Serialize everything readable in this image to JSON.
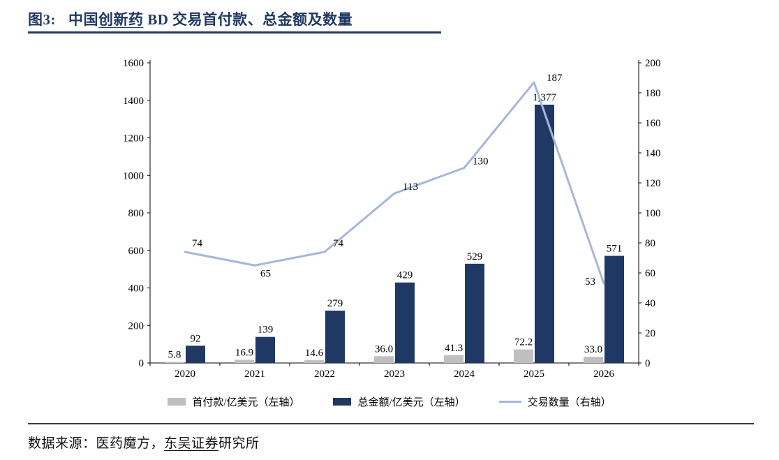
{
  "header": {
    "figure_label": "图3:",
    "title_seg_plain": "中国",
    "title_seg_underlined": "创新药",
    "title_seg_rest": " BD 交易首付款、总金额及数量"
  },
  "footer": {
    "source_prefix": "数据来源：医药魔方，",
    "source_underlined": "东吴证券",
    "source_suffix": "研究所"
  },
  "chart_data": {
    "type": "combo",
    "title": "中国创新药 BD 交易首付款、总金额及数量",
    "xlabel": "",
    "ylabel_left": "",
    "ylabel_right": "",
    "grid": false,
    "legend_position": "bottom",
    "categories": [
      "2020",
      "2021",
      "2022",
      "2023",
      "2024",
      "2025",
      "2026"
    ],
    "series": [
      {
        "name": "首付款/亿美元（左轴）",
        "type": "bar",
        "axis": "left",
        "color": "#BFBFBF",
        "values": [
          5.8,
          16.9,
          14.6,
          36.0,
          41.3,
          72.2,
          33.0
        ],
        "labels": [
          "5.8",
          "16.9",
          "14.6",
          "36.0",
          "41.3",
          "72.2",
          "33.0"
        ]
      },
      {
        "name": "总金额/亿美元（左轴）",
        "type": "bar",
        "axis": "left",
        "color": "#1F3864",
        "values": [
          92,
          139,
          279,
          429,
          529,
          1377,
          571
        ],
        "labels": [
          "92",
          "139",
          "279",
          "429",
          "529",
          "1,377",
          "571"
        ]
      },
      {
        "name": "交易数量（右轴）",
        "type": "line",
        "axis": "right",
        "color": "#A6B7D8",
        "values": [
          74,
          65,
          74,
          113,
          130,
          187,
          53
        ],
        "labels": [
          "74",
          "65",
          "74",
          "113",
          "130",
          "187",
          "53"
        ]
      }
    ],
    "left_axis": {
      "min": 0,
      "max": 1600,
      "step": 200,
      "ticks": [
        0,
        200,
        400,
        600,
        800,
        1000,
        1200,
        1400,
        1600
      ]
    },
    "right_axis": {
      "min": 0,
      "max": 200,
      "step": 20,
      "ticks": [
        0,
        20,
        40,
        60,
        80,
        100,
        120,
        140,
        160,
        180,
        200
      ]
    }
  },
  "colors": {
    "title": "#1F3864",
    "bar_gray": "#BFBFBF",
    "bar_navy": "#1F3864",
    "line_blue": "#A6B7D8",
    "axis": "#000000"
  }
}
